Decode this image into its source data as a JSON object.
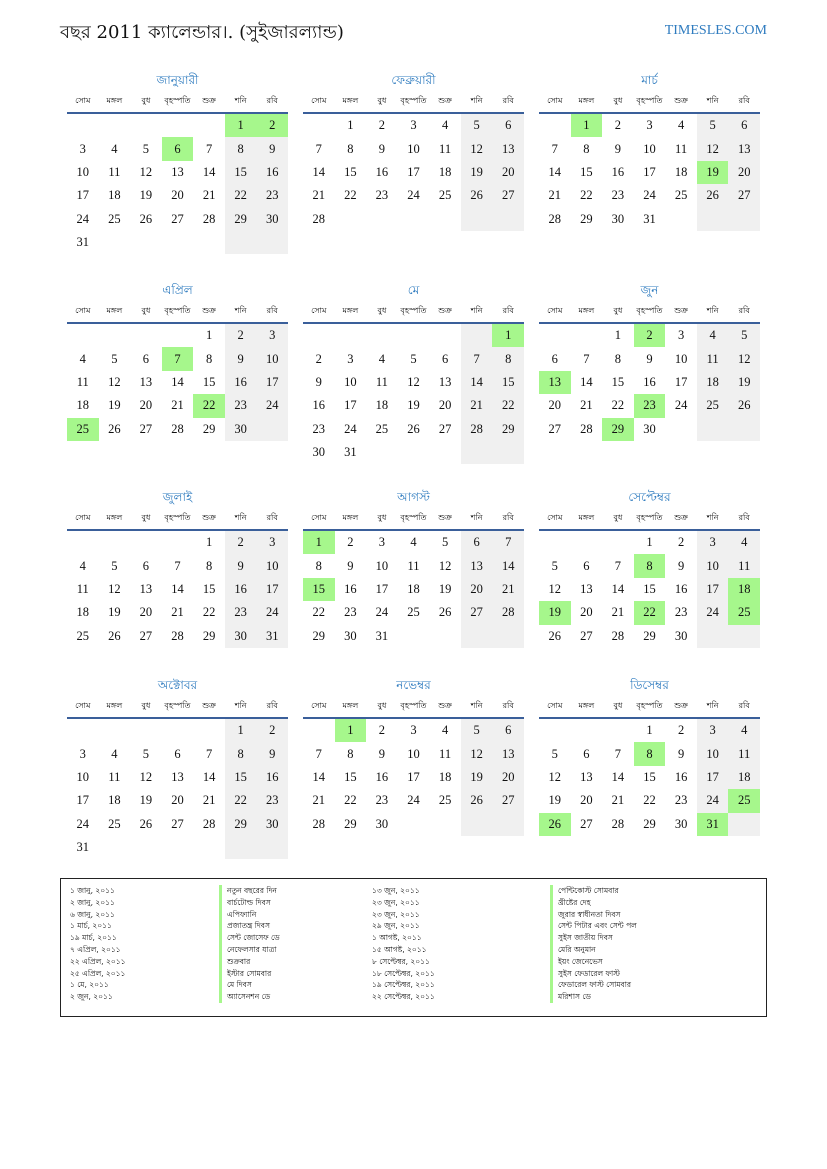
{
  "header": {
    "title": "বছর 2011 ক্যালেন্ডার।. (সুইজারল্যান্ড)",
    "site": "TIMESLES.COM"
  },
  "weekdays": [
    "সোম",
    "মঙ্গল",
    "বুধ",
    "বৃহস্পতি",
    "শুক্র",
    "শনি",
    "রবি"
  ],
  "colors": {
    "accent": "#2e7bbf",
    "holiday": "#a6f78c",
    "weekend": "#f0f0f0",
    "rule": "#3a5f9a"
  },
  "months": [
    {
      "name": "জানুয়ারী",
      "offset": 5,
      "days": 31,
      "holidays": [
        1,
        2,
        6
      ]
    },
    {
      "name": "ফেব্রুয়ারী",
      "offset": 1,
      "days": 28,
      "holidays": []
    },
    {
      "name": "মার্চ",
      "offset": 1,
      "days": 31,
      "holidays": [
        1,
        19
      ]
    },
    {
      "name": "এপ্রিল",
      "offset": 4,
      "days": 30,
      "holidays": [
        7,
        22,
        25
      ]
    },
    {
      "name": "মে",
      "offset": 6,
      "days": 31,
      "holidays": [
        1
      ]
    },
    {
      "name": "জুন",
      "offset": 2,
      "days": 30,
      "holidays": [
        2,
        13,
        23,
        29
      ]
    },
    {
      "name": "জুলাই",
      "offset": 4,
      "days": 31,
      "holidays": []
    },
    {
      "name": "আগস্ট",
      "offset": 0,
      "days": 31,
      "holidays": [
        1,
        15
      ]
    },
    {
      "name": "সেপ্টেম্বর",
      "offset": 3,
      "days": 30,
      "holidays": [
        8,
        18,
        19,
        22,
        25
      ]
    },
    {
      "name": "অক্টোবর",
      "offset": 5,
      "days": 31,
      "holidays": []
    },
    {
      "name": "নভেম্বর",
      "offset": 1,
      "days": 30,
      "holidays": [
        1
      ]
    },
    {
      "name": "ডিসেম্বর",
      "offset": 3,
      "days": 31,
      "holidays": [
        8,
        25,
        26,
        31
      ]
    }
  ],
  "holidays": [
    {
      "date": "১ জানু, ২০১১",
      "name": "নতুন বছরের দিন"
    },
    {
      "date": "২ জানু, ২০১১",
      "name": "বার্চটোল্ড দিবস"
    },
    {
      "date": "৬ জানু, ২০১১",
      "name": "এপিফ্যানি"
    },
    {
      "date": "১ মার্চ, ২০১১",
      "name": "প্রজাতন্ত্র দিবস"
    },
    {
      "date": "১৯ মার্চ, ২০১১",
      "name": "সেন্ট জোসেফ ডে"
    },
    {
      "date": "৭ এপ্রিল, ২০১১",
      "name": "নেফেলসার যাত্রা"
    },
    {
      "date": "২২ এপ্রিল, ২০১১",
      "name": "শুক্রবার"
    },
    {
      "date": "২৫ এপ্রিল, ২০১১",
      "name": "ইস্টার সোমবার"
    },
    {
      "date": "১ মে, ২০১১",
      "name": "মে দিবস"
    },
    {
      "date": "২ জুন, ২০১১",
      "name": "অ্যাসেনশন ডে"
    },
    {
      "date": "১৩ জুন, ২০১১",
      "name": "পেন্টিকোস্ট সোমবার"
    },
    {
      "date": "২৩ জুন, ২০১১",
      "name": "খ্রীষ্টের দেহ"
    },
    {
      "date": "২৩ জুন, ২০১১",
      "name": "জুরার স্বাধীনতা দিবস"
    },
    {
      "date": "২৯ জুন, ২০১১",
      "name": "সেন্ট পিটার এবং সেন্ট পল"
    },
    {
      "date": "১ আগষ্ট, ২০১১",
      "name": "সুইস জাতীয় দিবস"
    },
    {
      "date": "১৫ আগষ্ট, ২০১১",
      "name": "মেরি অনুমান"
    },
    {
      "date": "৮ সেপ্টেম্বর, ২০১১",
      "name": "ইয়ং জেনেভেস"
    },
    {
      "date": "১৮ সেপ্টেম্বর, ২০১১",
      "name": "সুইস ফেডারেল ফাস্ট"
    },
    {
      "date": "১৯ সেপ্টেম্বর, ২০১১",
      "name": "ফেডারেল ফাস্ট সোমবার"
    },
    {
      "date": "২২ সেপ্টেম্বর, ২০১১",
      "name": "মরিশাস ডে"
    }
  ]
}
